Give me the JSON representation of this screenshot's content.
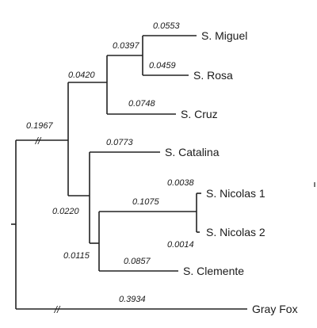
{
  "tree": {
    "taxa": {
      "miguel": "S. Miguel",
      "rosa": "S. Rosa",
      "cruz": "S. Cruz",
      "catalina": "S. Catalina",
      "nicolas1": "S. Nicolas 1",
      "nicolas2": "S. Nicolas 2",
      "clemente": "S. Clemente",
      "grayfox": "Gray Fox"
    },
    "branch_lengths": {
      "miguel": "0.0553",
      "rosa": "0.0459",
      "miguel_rosa_stem": "0.0397",
      "cruz": "0.0748",
      "northern_clade_stem": "0.0420",
      "island_fox_stem": "0.1967",
      "catalina": "0.0773",
      "nicolas_stem": "0.1075",
      "nicolas1": "0.0038",
      "nicolas2": "0.0014",
      "clemente": "0.0857",
      "southern_clade_stem": "0.0220",
      "nicolas_clemente_stem": "0.0115",
      "grayfox": "0.3934"
    },
    "break_mark": "//"
  }
}
